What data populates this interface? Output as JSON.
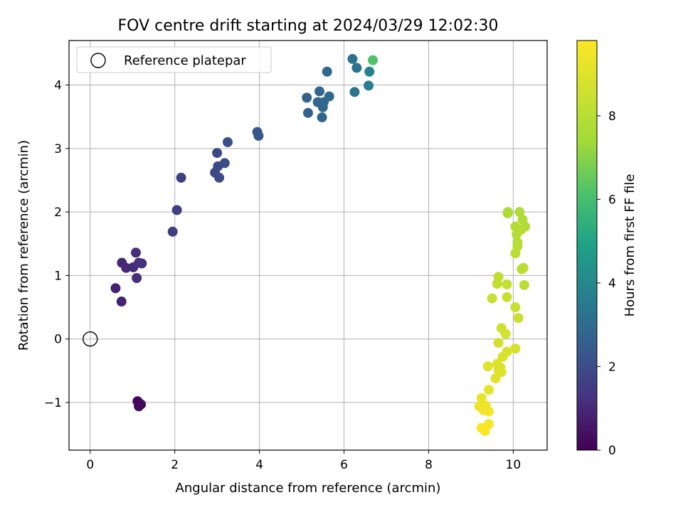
{
  "chart_data": {
    "type": "scatter",
    "title": "FOV centre drift starting at 2024/03/29 12:02:30",
    "xlabel": "Angular distance from reference (arcmin)",
    "ylabel": "Rotation from reference (arcmin)",
    "xlim": [
      -0.5,
      10.8
    ],
    "ylim": [
      -1.75,
      4.7
    ],
    "xticks": [
      0,
      2,
      4,
      6,
      8,
      10
    ],
    "yticks": [
      -1,
      0,
      1,
      2,
      3,
      4
    ],
    "grid": true,
    "legend": {
      "placement": "top-left",
      "entries": [
        "Reference platepar"
      ]
    },
    "reference_point": {
      "x": 0,
      "y": 0,
      "label": "Reference platepar"
    },
    "colorbar": {
      "label": "Hours from first FF file",
      "range": [
        0,
        9.8
      ],
      "ticks": [
        0,
        2,
        4,
        6,
        8
      ],
      "colormap": "viridis"
    },
    "points": [
      {
        "x": 1.12,
        "y": -0.98,
        "h": 0.15
      },
      {
        "x": 1.15,
        "y": -1.06,
        "h": 0.17
      },
      {
        "x": 1.18,
        "y": -1.02,
        "h": 0.18
      },
      {
        "x": 1.2,
        "y": -1.03,
        "h": 0.2
      },
      {
        "x": 0.6,
        "y": 0.8,
        "h": 0.8
      },
      {
        "x": 0.74,
        "y": 0.59,
        "h": 0.85
      },
      {
        "x": 0.75,
        "y": 1.2,
        "h": 0.95
      },
      {
        "x": 0.85,
        "y": 1.12,
        "h": 1.0
      },
      {
        "x": 1.02,
        "y": 1.13,
        "h": 1.05
      },
      {
        "x": 1.08,
        "y": 1.36,
        "h": 1.1
      },
      {
        "x": 1.1,
        "y": 0.96,
        "h": 1.12
      },
      {
        "x": 1.15,
        "y": 1.2,
        "h": 1.15
      },
      {
        "x": 1.22,
        "y": 1.19,
        "h": 1.2
      },
      {
        "x": 1.95,
        "y": 1.69,
        "h": 1.55
      },
      {
        "x": 2.05,
        "y": 2.03,
        "h": 1.6
      },
      {
        "x": 2.15,
        "y": 2.54,
        "h": 1.65
      },
      {
        "x": 2.95,
        "y": 2.62,
        "h": 1.85
      },
      {
        "x": 3.0,
        "y": 2.93,
        "h": 1.9
      },
      {
        "x": 3.02,
        "y": 2.72,
        "h": 1.9
      },
      {
        "x": 3.05,
        "y": 2.54,
        "h": 1.95
      },
      {
        "x": 3.18,
        "y": 2.77,
        "h": 2.0
      },
      {
        "x": 3.25,
        "y": 3.1,
        "h": 2.05
      },
      {
        "x": 3.95,
        "y": 3.26,
        "h": 2.3
      },
      {
        "x": 3.98,
        "y": 3.2,
        "h": 2.3
      },
      {
        "x": 5.12,
        "y": 3.8,
        "h": 2.7
      },
      {
        "x": 5.15,
        "y": 3.56,
        "h": 2.7
      },
      {
        "x": 5.38,
        "y": 3.73,
        "h": 2.75
      },
      {
        "x": 5.42,
        "y": 3.9,
        "h": 2.8
      },
      {
        "x": 5.48,
        "y": 3.49,
        "h": 2.8
      },
      {
        "x": 5.5,
        "y": 3.65,
        "h": 2.85
      },
      {
        "x": 5.52,
        "y": 3.73,
        "h": 2.85
      },
      {
        "x": 5.6,
        "y": 4.21,
        "h": 2.9
      },
      {
        "x": 5.65,
        "y": 3.82,
        "h": 2.9
      },
      {
        "x": 6.2,
        "y": 4.41,
        "h": 3.2
      },
      {
        "x": 6.25,
        "y": 3.89,
        "h": 3.25
      },
      {
        "x": 6.3,
        "y": 4.27,
        "h": 3.3
      },
      {
        "x": 6.58,
        "y": 3.99,
        "h": 3.6
      },
      {
        "x": 6.6,
        "y": 4.21,
        "h": 3.8
      },
      {
        "x": 6.68,
        "y": 4.39,
        "h": 6.2
      },
      {
        "x": 9.87,
        "y": 2.0,
        "h": 7.7
      },
      {
        "x": 9.87,
        "y": 1.98,
        "h": 7.7
      },
      {
        "x": 10.15,
        "y": 2.0,
        "h": 7.75
      },
      {
        "x": 10.22,
        "y": 1.88,
        "h": 7.8
      },
      {
        "x": 10.28,
        "y": 1.77,
        "h": 7.8
      },
      {
        "x": 10.05,
        "y": 1.77,
        "h": 7.85
      },
      {
        "x": 10.08,
        "y": 1.65,
        "h": 7.9
      },
      {
        "x": 10.18,
        "y": 1.72,
        "h": 7.9
      },
      {
        "x": 10.1,
        "y": 1.52,
        "h": 7.95
      },
      {
        "x": 10.1,
        "y": 1.46,
        "h": 7.95
      },
      {
        "x": 10.05,
        "y": 1.35,
        "h": 8.0
      },
      {
        "x": 10.2,
        "y": 1.1,
        "h": 8.05
      },
      {
        "x": 10.24,
        "y": 1.12,
        "h": 8.05
      },
      {
        "x": 10.26,
        "y": 0.85,
        "h": 8.1
      },
      {
        "x": 9.65,
        "y": 0.98,
        "h": 8.2
      },
      {
        "x": 9.62,
        "y": 0.87,
        "h": 8.2
      },
      {
        "x": 9.85,
        "y": 0.86,
        "h": 8.25
      },
      {
        "x": 9.85,
        "y": 0.66,
        "h": 8.3
      },
      {
        "x": 9.5,
        "y": 0.64,
        "h": 8.35
      },
      {
        "x": 10.05,
        "y": 0.5,
        "h": 8.4
      },
      {
        "x": 10.12,
        "y": 0.33,
        "h": 8.45
      },
      {
        "x": 9.72,
        "y": 0.17,
        "h": 8.6
      },
      {
        "x": 9.82,
        "y": 0.08,
        "h": 8.65
      },
      {
        "x": 9.65,
        "y": -0.06,
        "h": 8.7
      },
      {
        "x": 10.05,
        "y": -0.15,
        "h": 8.75
      },
      {
        "x": 9.85,
        "y": -0.2,
        "h": 8.8
      },
      {
        "x": 9.75,
        "y": -0.28,
        "h": 8.85
      },
      {
        "x": 9.62,
        "y": -0.39,
        "h": 8.9
      },
      {
        "x": 9.7,
        "y": -0.45,
        "h": 8.9
      },
      {
        "x": 9.72,
        "y": -0.52,
        "h": 8.95
      },
      {
        "x": 9.65,
        "y": -0.49,
        "h": 8.95
      },
      {
        "x": 9.4,
        "y": -0.43,
        "h": 9.0
      },
      {
        "x": 9.58,
        "y": -0.62,
        "h": 9.05
      },
      {
        "x": 9.42,
        "y": -0.8,
        "h": 9.2
      },
      {
        "x": 9.25,
        "y": -0.93,
        "h": 9.3
      },
      {
        "x": 9.2,
        "y": -1.06,
        "h": 9.35
      },
      {
        "x": 9.35,
        "y": -1.05,
        "h": 9.4
      },
      {
        "x": 9.32,
        "y": -1.1,
        "h": 9.45
      },
      {
        "x": 9.3,
        "y": -1.12,
        "h": 9.5
      },
      {
        "x": 9.42,
        "y": -1.14,
        "h": 9.55
      },
      {
        "x": 9.42,
        "y": -1.34,
        "h": 9.6
      },
      {
        "x": 9.25,
        "y": -1.4,
        "h": 9.65
      },
      {
        "x": 9.33,
        "y": -1.45,
        "h": 9.7
      }
    ]
  }
}
